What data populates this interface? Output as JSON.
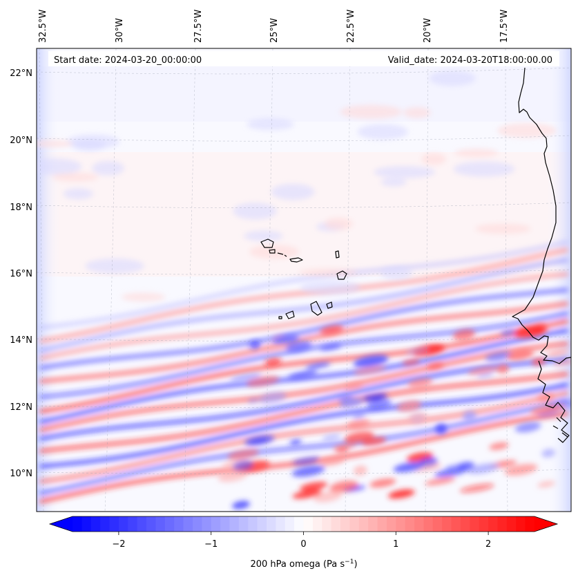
{
  "map": {
    "start_label": "Start date: 2024-03-20_00:00:00",
    "valid_label": "Valid_date: 2024-03-20T18:00:00.00",
    "lon_labels": [
      "32.5°W",
      "30°W",
      "27.5°W",
      "25°W",
      "22.5°W",
      "20°W",
      "17.5°W"
    ],
    "lat_labels": [
      "22°N",
      "20°N",
      "18°N",
      "16°N",
      "14°N",
      "12°N",
      "10°N"
    ],
    "field": "200 hPa omega",
    "colormap": "bwr",
    "value_range": [
      -2.5,
      2.5
    ]
  },
  "colorbar": {
    "label_main": "200 hPa omega (Pa s",
    "label_exp": "−1",
    "label_close": ")",
    "ticks": [
      "−2",
      "−1",
      "0",
      "1",
      "2"
    ],
    "tick_values": [
      -2,
      -1,
      0,
      1,
      2
    ],
    "min": -2.5,
    "max": 2.5,
    "extend": "both",
    "colors": {
      "low": "#0000ff",
      "mid": "#ffffff",
      "high": "#ff0000"
    }
  }
}
